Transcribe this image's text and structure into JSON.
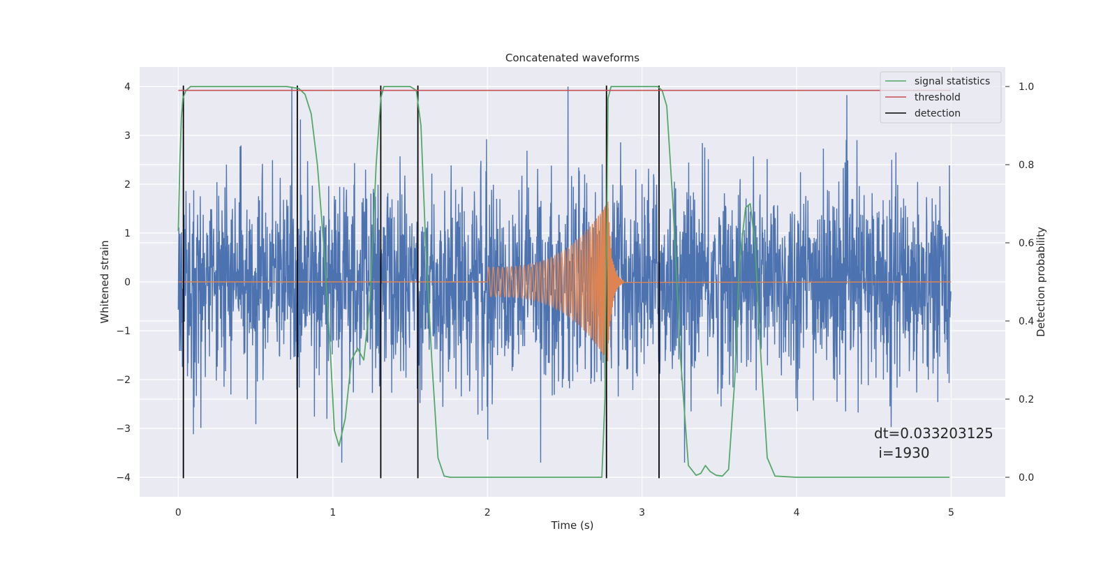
{
  "chart_data": {
    "type": "line",
    "title": "Concatenated waveforms",
    "xlabel": "Time (s)",
    "ylabel": "Whitened strain",
    "y2label": "Detection probability",
    "xlim": [
      -0.25,
      5.35
    ],
    "ylim": [
      -4.4,
      4.4
    ],
    "y2lim": [
      -0.05,
      1.05
    ],
    "xticks": [
      0,
      1,
      2,
      3,
      4,
      5
    ],
    "xtick_labels": [
      "0",
      "1",
      "2",
      "3",
      "4",
      "5"
    ],
    "yticks": [
      -4,
      -3,
      -2,
      -1,
      0,
      1,
      2,
      3,
      4
    ],
    "ytick_labels": [
      "−4",
      "−3",
      "−2",
      "−1",
      "0",
      "1",
      "2",
      "3",
      "4"
    ],
    "y2ticks": [
      0.0,
      0.2,
      0.4,
      0.6,
      0.8,
      1.0
    ],
    "y2tick_labels": [
      "0.0",
      "0.2",
      "0.4",
      "0.6",
      "0.8",
      "1.0"
    ],
    "grid": true,
    "legend_position": "top-right",
    "annotation": {
      "line1": "dt=0.033203125",
      "line2": " i=1930",
      "x": 4.5,
      "y": -3.3
    },
    "series": [
      {
        "name": "",
        "axis": "left",
        "color": "#4c72b0",
        "kind": "noise",
        "x_range": [
          0,
          5
        ],
        "amplitude_range": [
          -3.7,
          4.0
        ],
        "typical_amplitude": 1.0
      },
      {
        "name": "",
        "axis": "left",
        "color": "#dd8452",
        "kind": "chirp",
        "flat_value": 0,
        "x_range": [
          0,
          5
        ],
        "chirp_start": 2.0,
        "merger": 2.78,
        "ringdown_end": 2.88,
        "start_amplitude": 0.3,
        "peak_amplitude": 1.65,
        "cycles": 52
      },
      {
        "name": "signal statistics",
        "axis": "right",
        "color": "#55a868",
        "x": [
          0.0,
          0.01,
          0.02,
          0.03,
          0.05,
          0.08,
          0.2,
          0.5,
          0.7,
          0.78,
          0.82,
          0.86,
          0.9,
          0.94,
          0.98,
          1.01,
          1.04,
          1.08,
          1.12,
          1.16,
          1.2,
          1.24,
          1.28,
          1.31,
          1.33,
          1.36,
          1.5,
          1.54,
          1.57,
          1.6,
          1.64,
          1.68,
          1.72,
          1.76,
          2.0,
          2.5,
          2.74,
          2.76,
          2.78,
          2.8,
          2.83,
          3.1,
          3.13,
          3.16,
          3.2,
          3.25,
          3.3,
          3.35,
          3.38,
          3.41,
          3.44,
          3.48,
          3.52,
          3.56,
          3.6,
          3.63,
          3.67,
          3.7,
          3.73,
          3.77,
          3.81,
          3.86,
          4.0,
          4.5,
          4.99
        ],
        "y": [
          0.63,
          0.8,
          0.92,
          0.97,
          0.99,
          1.0,
          1.0,
          1.0,
          1.0,
          0.995,
          0.98,
          0.93,
          0.8,
          0.6,
          0.35,
          0.12,
          0.08,
          0.15,
          0.3,
          0.33,
          0.3,
          0.45,
          0.8,
          0.97,
          1.0,
          1.0,
          1.0,
          0.99,
          0.9,
          0.6,
          0.3,
          0.05,
          0.003,
          0.0,
          0.0,
          0.0,
          0.0,
          0.2,
          0.97,
          1.0,
          1.0,
          1.0,
          0.99,
          0.95,
          0.7,
          0.3,
          0.03,
          0.005,
          0.01,
          0.03,
          0.015,
          0.005,
          0.003,
          0.02,
          0.25,
          0.55,
          0.69,
          0.7,
          0.6,
          0.3,
          0.05,
          0.003,
          0.0,
          0.0,
          0.0
        ]
      },
      {
        "name": "threshold",
        "axis": "right",
        "color": "#c44e52",
        "x": [
          0,
          5
        ],
        "y": [
          0.99,
          0.99
        ]
      },
      {
        "name": "detection",
        "axis": "left",
        "color": "#000000",
        "kind": "vlines",
        "x": [
          0.033,
          0.77,
          1.31,
          1.55,
          2.77,
          3.11
        ],
        "y_range": [
          -4.02,
          4.02
        ]
      }
    ]
  }
}
